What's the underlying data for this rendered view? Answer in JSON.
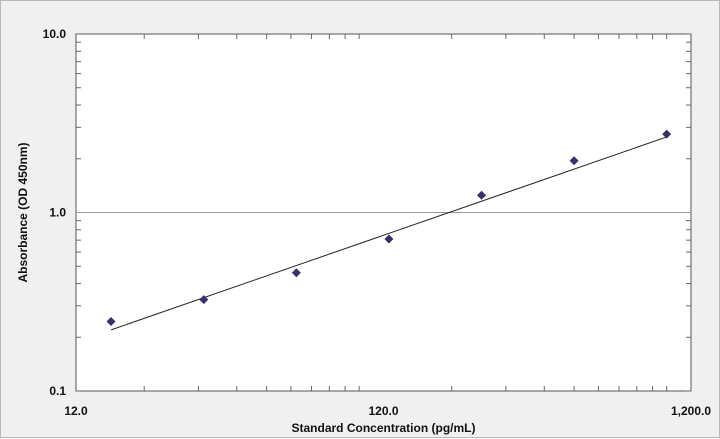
{
  "chart_data": {
    "type": "scatter",
    "xlabel": "Standard Concentration (pg/mL)",
    "ylabel": "Absorbance (OD 450nm)",
    "x_scale": "log",
    "y_scale": "log",
    "xlim": [
      12,
      1200
    ],
    "ylim": [
      0.1,
      10
    ],
    "x_ticks": [
      {
        "value": 12,
        "label": "12.0"
      },
      {
        "value": 120,
        "label": "120.0"
      },
      {
        "value": 1200,
        "label": "1,200.0"
      }
    ],
    "y_ticks": [
      {
        "value": 0.1,
        "label": "0.1"
      },
      {
        "value": 1,
        "label": "1.0"
      },
      {
        "value": 10,
        "label": "10.0"
      }
    ],
    "grid": "horizontal at 1.0",
    "legend": "none",
    "marker_color": "#3b2f6b",
    "line_color": "#222222",
    "points": [
      {
        "x": 15.6,
        "y": 0.245
      },
      {
        "x": 31.25,
        "y": 0.325
      },
      {
        "x": 62.5,
        "y": 0.46
      },
      {
        "x": 125,
        "y": 0.71
      },
      {
        "x": 250,
        "y": 1.25
      },
      {
        "x": 500,
        "y": 1.95
      },
      {
        "x": 1000,
        "y": 2.75
      }
    ],
    "fit_line": [
      {
        "x": 15.6,
        "y": 0.22
      },
      {
        "x": 1000,
        "y": 2.65
      }
    ]
  }
}
